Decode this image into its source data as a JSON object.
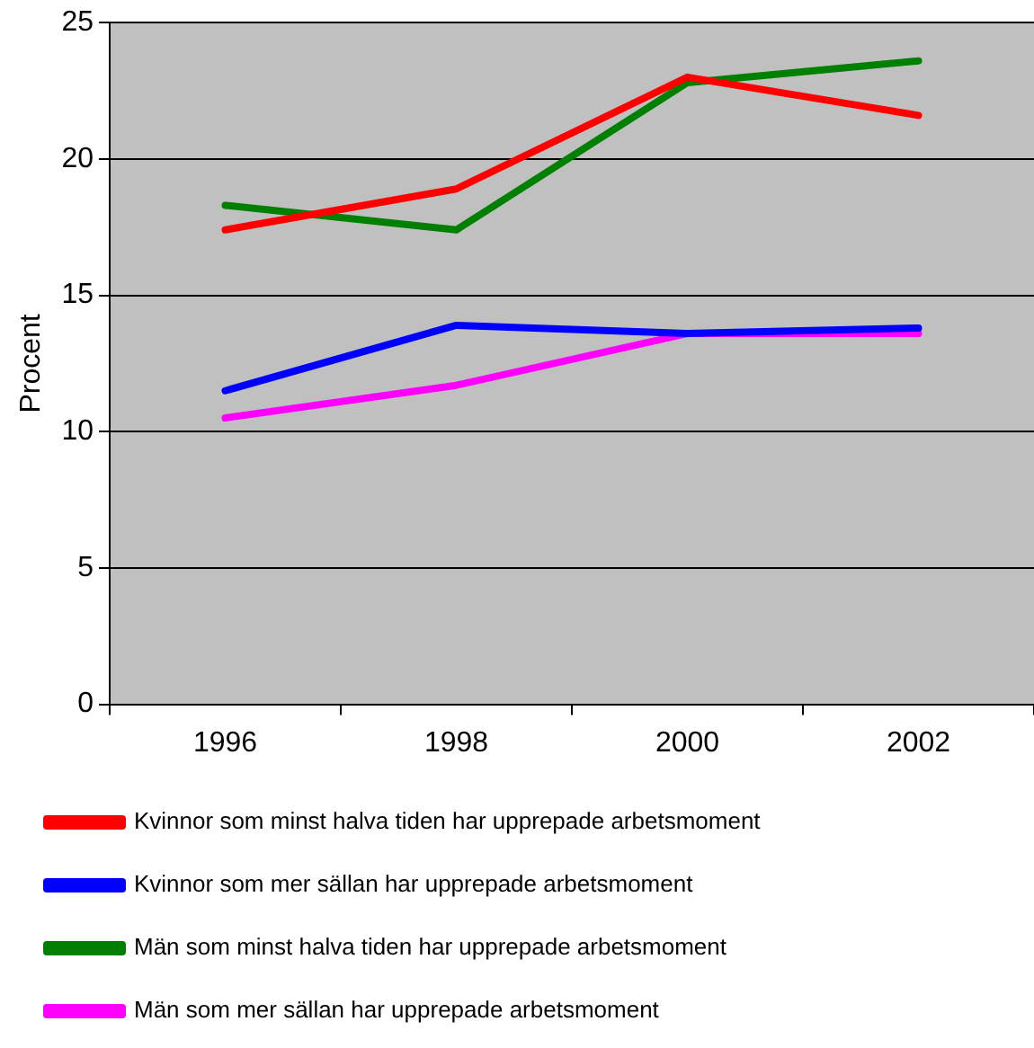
{
  "chart_data": {
    "type": "line",
    "ylabel": "Procent",
    "categories": [
      "1996",
      "1998",
      "2000",
      "2002"
    ],
    "series": [
      {
        "name": "Kvinnor som minst halva tiden har upprepade arbetsmoment",
        "color": "#ff0000",
        "values": [
          17.4,
          18.9,
          23.0,
          21.6
        ]
      },
      {
        "name": "Kvinnor som mer sällan har upprepade arbetsmoment",
        "color": "#0000ff",
        "values": [
          11.5,
          13.9,
          13.6,
          13.8
        ]
      },
      {
        "name": "Män som minst halva tiden har upprepade arbetsmoment",
        "color": "#008000",
        "values": [
          18.3,
          17.4,
          22.8,
          23.6
        ]
      },
      {
        "name": "Män som mer sällan har upprepade arbetsmoment",
        "color": "#ff00ff",
        "values": [
          10.5,
          11.7,
          13.6,
          13.6
        ]
      }
    ],
    "ylim": [
      0,
      25
    ],
    "yticks": [
      0,
      5,
      10,
      15,
      20,
      25
    ],
    "grid": "y",
    "legend": "bottom",
    "marker": "none",
    "line_style": "solid"
  }
}
